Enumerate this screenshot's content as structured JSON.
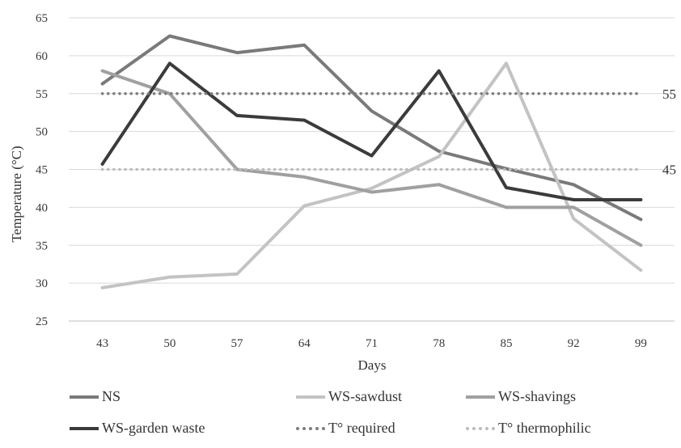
{
  "chart_data": {
    "type": "line",
    "title": "",
    "xlabel": "Days",
    "ylabel": "Temperature (°C)",
    "categories": [
      "43",
      "50",
      "57",
      "64",
      "71",
      "78",
      "85",
      "92",
      "99"
    ],
    "ylim": [
      25,
      65
    ],
    "yticks": [
      25,
      30,
      35,
      40,
      45,
      50,
      55,
      60,
      65
    ],
    "grid": true,
    "legend": "bottom",
    "series": [
      {
        "name": "NS",
        "color": "#7a7a7a",
        "style": "solid",
        "values": [
          56.3,
          62.6,
          60.4,
          61.4,
          52.7,
          47.4,
          45.1,
          43.0,
          38.4
        ]
      },
      {
        "name": "WS-sawdust",
        "color": "#c3c3c3",
        "style": "solid",
        "values": [
          29.4,
          30.8,
          31.2,
          40.2,
          42.5,
          46.7,
          59.0,
          38.5,
          31.7
        ]
      },
      {
        "name": "WS-shavings",
        "color": "#a0a0a0",
        "style": "solid",
        "values": [
          58.0,
          55.0,
          45.0,
          44.0,
          42.0,
          43.0,
          40.0,
          40.0,
          35.0
        ]
      },
      {
        "name": "WS-garden waste",
        "color": "#3b3b3b",
        "style": "solid",
        "values": [
          45.7,
          59.0,
          52.1,
          51.5,
          46.8,
          58.0,
          42.6,
          41.0,
          41.0
        ]
      },
      {
        "name": "T° required",
        "color": "#7d7d7d",
        "style": "dotted",
        "values": [
          55,
          55,
          55,
          55,
          55,
          55,
          55,
          55,
          55
        ],
        "end_label": "55"
      },
      {
        "name": "T° thermophilic",
        "color": "#bcbcbc",
        "style": "dotted",
        "values": [
          45,
          45,
          45,
          45,
          45,
          45,
          45,
          45,
          45
        ],
        "end_label": "45"
      }
    ]
  }
}
